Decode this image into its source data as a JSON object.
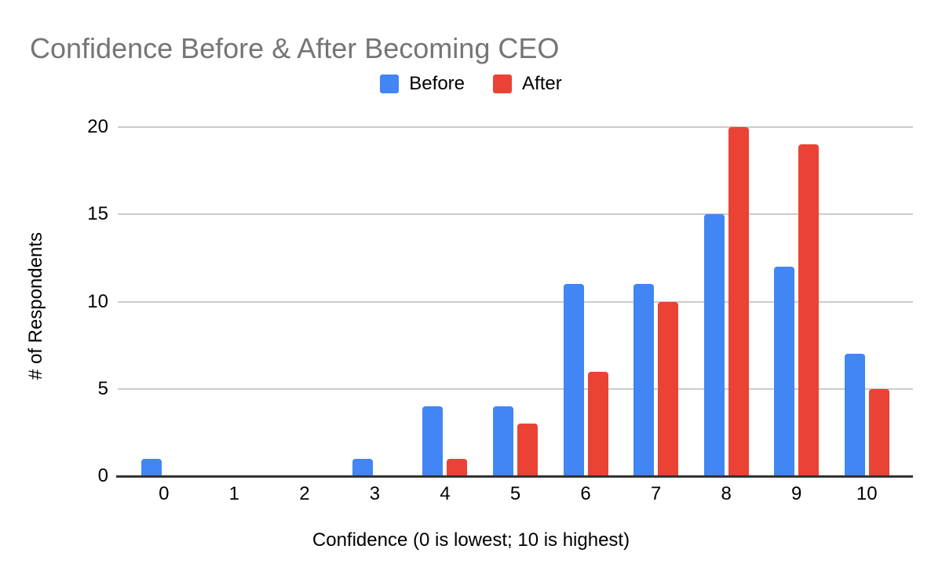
{
  "chart_data": {
    "type": "bar",
    "title": "Confidence Before & After Becoming CEO",
    "title_color": "#757575",
    "categories": [
      "0",
      "1",
      "2",
      "3",
      "4",
      "5",
      "6",
      "7",
      "8",
      "9",
      "10"
    ],
    "series": [
      {
        "name": "Before",
        "color": "#4285F4",
        "values": [
          1,
          0,
          0,
          1,
          4,
          4,
          11,
          11,
          15,
          12,
          7
        ]
      },
      {
        "name": "After",
        "color": "#EA4335",
        "values": [
          0,
          0,
          0,
          0,
          1,
          3,
          6,
          10,
          20,
          19,
          5
        ]
      }
    ],
    "xlabel": "Confidence (0 is lowest; 10 is highest)",
    "ylabel": "# of Respondents",
    "ylim": [
      0,
      20
    ],
    "yticks": [
      0,
      5,
      10,
      15,
      20
    ],
    "grid": true,
    "legend_position": "top",
    "gridline_color": "#cccccc",
    "axis_line_color": "#333333",
    "label_color": "#000000"
  }
}
